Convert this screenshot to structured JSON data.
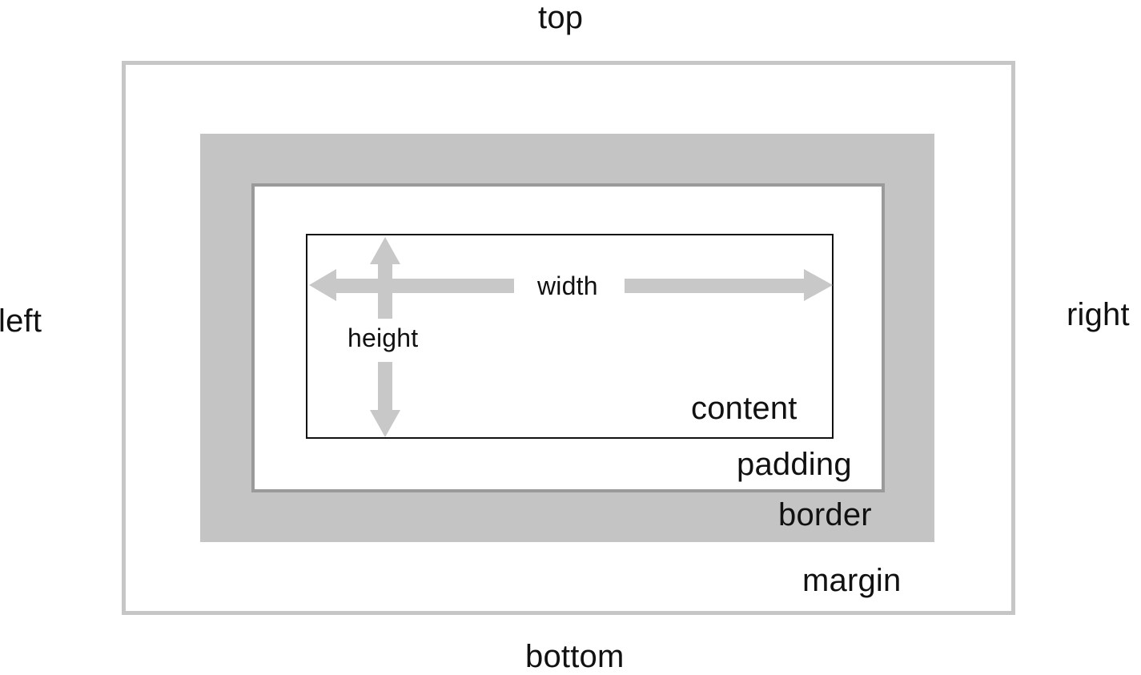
{
  "sides": {
    "top": "top",
    "bottom": "bottom",
    "left": "left",
    "right": "right"
  },
  "layers": {
    "margin": "margin",
    "border": "border",
    "padding": "padding",
    "content": "content"
  },
  "dimensions": {
    "width": "width",
    "height": "height"
  },
  "colors": {
    "border_fill": "#c4c4c4",
    "margin_outline": "#c6c6c6",
    "padding_outline": "#9a9a9a",
    "content_outline": "#111111",
    "arrow": "#c8c8c8",
    "text": "#111111"
  }
}
